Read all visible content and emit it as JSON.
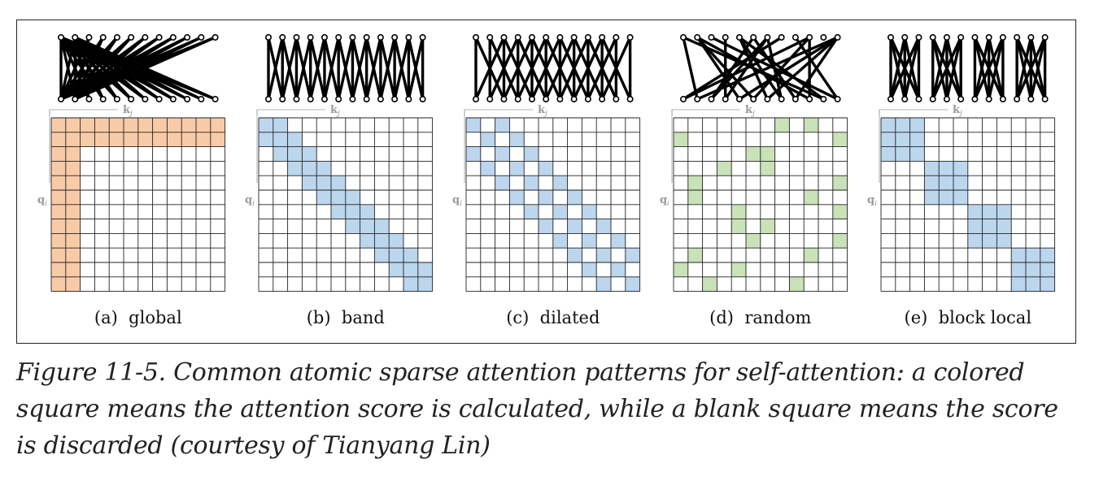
{
  "figure": {
    "key_label": "k",
    "key_subscript": "j",
    "query_label": "q",
    "query_subscript": "i",
    "colors": {
      "global": "#f8cba7",
      "band": "#bcd6ee",
      "dilated": "#bcd6ee",
      "random": "#c9e2b8",
      "block_local": "#bcd6ee",
      "grid_line": "#222222",
      "axis_label": "#9a9a9a"
    },
    "panels": [
      {
        "id": "global",
        "caption": "(a)  global",
        "color": "#f8cba7",
        "cells": [
          [
            0,
            0
          ],
          [
            0,
            1
          ],
          [
            0,
            2
          ],
          [
            0,
            3
          ],
          [
            0,
            4
          ],
          [
            0,
            5
          ],
          [
            0,
            6
          ],
          [
            0,
            7
          ],
          [
            0,
            8
          ],
          [
            0,
            9
          ],
          [
            0,
            10
          ],
          [
            0,
            11
          ],
          [
            1,
            0
          ],
          [
            1,
            1
          ],
          [
            1,
            2
          ],
          [
            1,
            3
          ],
          [
            1,
            4
          ],
          [
            1,
            5
          ],
          [
            1,
            6
          ],
          [
            1,
            7
          ],
          [
            1,
            8
          ],
          [
            1,
            9
          ],
          [
            1,
            10
          ],
          [
            1,
            11
          ],
          [
            2,
            0
          ],
          [
            3,
            0
          ],
          [
            4,
            0
          ],
          [
            5,
            0
          ],
          [
            6,
            0
          ],
          [
            7,
            0
          ],
          [
            8,
            0
          ],
          [
            9,
            0
          ],
          [
            10,
            0
          ],
          [
            11,
            0
          ],
          [
            2,
            1
          ],
          [
            3,
            1
          ],
          [
            4,
            1
          ],
          [
            5,
            1
          ],
          [
            6,
            1
          ],
          [
            7,
            1
          ],
          [
            8,
            1
          ],
          [
            9,
            1
          ],
          [
            10,
            1
          ],
          [
            11,
            1
          ]
        ],
        "connections": [
          [
            0,
            0
          ],
          [
            0,
            1
          ],
          [
            0,
            2
          ],
          [
            0,
            3
          ],
          [
            0,
            4
          ],
          [
            0,
            5
          ],
          [
            0,
            6
          ],
          [
            0,
            7
          ],
          [
            0,
            8
          ],
          [
            0,
            9
          ],
          [
            0,
            10
          ],
          [
            0,
            11
          ],
          [
            1,
            0
          ],
          [
            1,
            1
          ],
          [
            1,
            2
          ],
          [
            1,
            3
          ],
          [
            1,
            4
          ],
          [
            1,
            5
          ],
          [
            1,
            6
          ],
          [
            1,
            7
          ],
          [
            1,
            8
          ],
          [
            1,
            9
          ],
          [
            1,
            10
          ],
          [
            1,
            11
          ],
          [
            2,
            0
          ],
          [
            3,
            0
          ],
          [
            4,
            0
          ],
          [
            5,
            0
          ],
          [
            6,
            0
          ],
          [
            7,
            0
          ],
          [
            8,
            0
          ],
          [
            9,
            0
          ],
          [
            10,
            0
          ],
          [
            11,
            0
          ],
          [
            2,
            1
          ],
          [
            3,
            1
          ],
          [
            4,
            1
          ],
          [
            5,
            1
          ],
          [
            6,
            1
          ],
          [
            7,
            1
          ],
          [
            8,
            1
          ],
          [
            9,
            1
          ],
          [
            10,
            1
          ],
          [
            11,
            1
          ]
        ]
      },
      {
        "id": "band",
        "caption": "(b)  band",
        "color": "#bcd6ee",
        "cells": [
          [
            0,
            0
          ],
          [
            0,
            1
          ],
          [
            1,
            0
          ],
          [
            1,
            1
          ],
          [
            1,
            2
          ],
          [
            2,
            1
          ],
          [
            2,
            2
          ],
          [
            2,
            3
          ],
          [
            3,
            2
          ],
          [
            3,
            3
          ],
          [
            3,
            4
          ],
          [
            4,
            3
          ],
          [
            4,
            4
          ],
          [
            4,
            5
          ],
          [
            5,
            4
          ],
          [
            5,
            5
          ],
          [
            5,
            6
          ],
          [
            6,
            5
          ],
          [
            6,
            6
          ],
          [
            6,
            7
          ],
          [
            7,
            6
          ],
          [
            7,
            7
          ],
          [
            7,
            8
          ],
          [
            8,
            7
          ],
          [
            8,
            8
          ],
          [
            8,
            9
          ],
          [
            9,
            8
          ],
          [
            9,
            9
          ],
          [
            9,
            10
          ],
          [
            10,
            9
          ],
          [
            10,
            10
          ],
          [
            10,
            11
          ],
          [
            11,
            10
          ],
          [
            11,
            11
          ]
        ],
        "connections": [
          [
            0,
            0
          ],
          [
            0,
            1
          ],
          [
            1,
            0
          ],
          [
            1,
            1
          ],
          [
            1,
            2
          ],
          [
            2,
            1
          ],
          [
            2,
            2
          ],
          [
            2,
            3
          ],
          [
            3,
            2
          ],
          [
            3,
            3
          ],
          [
            3,
            4
          ],
          [
            4,
            3
          ],
          [
            4,
            4
          ],
          [
            4,
            5
          ],
          [
            5,
            4
          ],
          [
            5,
            5
          ],
          [
            5,
            6
          ],
          [
            6,
            5
          ],
          [
            6,
            6
          ],
          [
            6,
            7
          ],
          [
            7,
            6
          ],
          [
            7,
            7
          ],
          [
            7,
            8
          ],
          [
            8,
            7
          ],
          [
            8,
            8
          ],
          [
            8,
            9
          ],
          [
            9,
            8
          ],
          [
            9,
            9
          ],
          [
            9,
            10
          ],
          [
            10,
            9
          ],
          [
            10,
            10
          ],
          [
            10,
            11
          ],
          [
            11,
            10
          ],
          [
            11,
            11
          ]
        ]
      },
      {
        "id": "dilated",
        "caption": "(c)  dilated",
        "color": "#bcd6ee",
        "cells": [
          [
            0,
            0
          ],
          [
            0,
            2
          ],
          [
            1,
            1
          ],
          [
            1,
            3
          ],
          [
            2,
            0
          ],
          [
            2,
            2
          ],
          [
            2,
            4
          ],
          [
            3,
            1
          ],
          [
            3,
            3
          ],
          [
            3,
            5
          ],
          [
            4,
            2
          ],
          [
            4,
            4
          ],
          [
            4,
            6
          ],
          [
            5,
            3
          ],
          [
            5,
            5
          ],
          [
            5,
            7
          ],
          [
            6,
            4
          ],
          [
            6,
            6
          ],
          [
            6,
            8
          ],
          [
            7,
            5
          ],
          [
            7,
            7
          ],
          [
            7,
            9
          ],
          [
            8,
            6
          ],
          [
            8,
            8
          ],
          [
            8,
            10
          ],
          [
            9,
            7
          ],
          [
            9,
            9
          ],
          [
            9,
            11
          ],
          [
            10,
            8
          ],
          [
            10,
            10
          ],
          [
            11,
            9
          ],
          [
            11,
            11
          ]
        ],
        "connections": [
          [
            0,
            0
          ],
          [
            0,
            2
          ],
          [
            1,
            1
          ],
          [
            1,
            3
          ],
          [
            2,
            0
          ],
          [
            2,
            2
          ],
          [
            2,
            4
          ],
          [
            3,
            1
          ],
          [
            3,
            3
          ],
          [
            3,
            5
          ],
          [
            4,
            2
          ],
          [
            4,
            4
          ],
          [
            4,
            6
          ],
          [
            5,
            3
          ],
          [
            5,
            5
          ],
          [
            5,
            7
          ],
          [
            6,
            4
          ],
          [
            6,
            6
          ],
          [
            6,
            8
          ],
          [
            7,
            5
          ],
          [
            7,
            7
          ],
          [
            7,
            9
          ],
          [
            8,
            6
          ],
          [
            8,
            8
          ],
          [
            8,
            10
          ],
          [
            9,
            7
          ],
          [
            9,
            9
          ],
          [
            9,
            11
          ],
          [
            10,
            8
          ],
          [
            10,
            10
          ],
          [
            11,
            9
          ],
          [
            11,
            11
          ]
        ]
      },
      {
        "id": "random",
        "caption": "(d)  random",
        "color": "#c9e2b8",
        "cells": [
          [
            0,
            7
          ],
          [
            0,
            9
          ],
          [
            1,
            0
          ],
          [
            1,
            11
          ],
          [
            2,
            5
          ],
          [
            2,
            6
          ],
          [
            3,
            3
          ],
          [
            3,
            6
          ],
          [
            4,
            1
          ],
          [
            4,
            11
          ],
          [
            5,
            1
          ],
          [
            5,
            9
          ],
          [
            6,
            4
          ],
          [
            6,
            11
          ],
          [
            7,
            4
          ],
          [
            7,
            6
          ],
          [
            8,
            5
          ],
          [
            8,
            11
          ],
          [
            9,
            1
          ],
          [
            9,
            9
          ],
          [
            10,
            0
          ],
          [
            10,
            4
          ],
          [
            11,
            2
          ],
          [
            11,
            8
          ]
        ],
        "connections": [
          [
            0,
            7
          ],
          [
            0,
            9
          ],
          [
            1,
            0
          ],
          [
            1,
            11
          ],
          [
            2,
            5
          ],
          [
            2,
            6
          ],
          [
            3,
            3
          ],
          [
            3,
            6
          ],
          [
            4,
            1
          ],
          [
            4,
            11
          ],
          [
            5,
            1
          ],
          [
            5,
            9
          ],
          [
            6,
            4
          ],
          [
            6,
            11
          ],
          [
            7,
            4
          ],
          [
            7,
            6
          ],
          [
            8,
            5
          ],
          [
            8,
            11
          ],
          [
            9,
            1
          ],
          [
            9,
            9
          ],
          [
            10,
            0
          ],
          [
            10,
            4
          ],
          [
            11,
            2
          ],
          [
            11,
            8
          ]
        ]
      },
      {
        "id": "block-local",
        "caption": "(e)  block local",
        "color": "#bcd6ee",
        "cells": [
          [
            0,
            0
          ],
          [
            0,
            1
          ],
          [
            0,
            2
          ],
          [
            1,
            0
          ],
          [
            1,
            1
          ],
          [
            1,
            2
          ],
          [
            2,
            0
          ],
          [
            2,
            1
          ],
          [
            2,
            2
          ],
          [
            3,
            3
          ],
          [
            3,
            4
          ],
          [
            3,
            5
          ],
          [
            4,
            3
          ],
          [
            4,
            4
          ],
          [
            4,
            5
          ],
          [
            5,
            3
          ],
          [
            5,
            4
          ],
          [
            5,
            5
          ],
          [
            6,
            6
          ],
          [
            6,
            7
          ],
          [
            6,
            8
          ],
          [
            7,
            6
          ],
          [
            7,
            7
          ],
          [
            7,
            8
          ],
          [
            8,
            6
          ],
          [
            8,
            7
          ],
          [
            8,
            8
          ],
          [
            9,
            9
          ],
          [
            9,
            10
          ],
          [
            9,
            11
          ],
          [
            10,
            9
          ],
          [
            10,
            10
          ],
          [
            10,
            11
          ],
          [
            11,
            9
          ],
          [
            11,
            10
          ],
          [
            11,
            11
          ]
        ],
        "connections": [
          [
            0,
            0
          ],
          [
            0,
            1
          ],
          [
            0,
            2
          ],
          [
            1,
            0
          ],
          [
            1,
            1
          ],
          [
            1,
            2
          ],
          [
            2,
            0
          ],
          [
            2,
            1
          ],
          [
            2,
            2
          ],
          [
            3,
            3
          ],
          [
            3,
            4
          ],
          [
            3,
            5
          ],
          [
            4,
            3
          ],
          [
            4,
            4
          ],
          [
            4,
            5
          ],
          [
            5,
            3
          ],
          [
            5,
            4
          ],
          [
            5,
            5
          ],
          [
            6,
            6
          ],
          [
            6,
            7
          ],
          [
            6,
            8
          ],
          [
            7,
            6
          ],
          [
            7,
            7
          ],
          [
            7,
            8
          ],
          [
            8,
            6
          ],
          [
            8,
            7
          ],
          [
            8,
            8
          ],
          [
            9,
            9
          ],
          [
            9,
            10
          ],
          [
            9,
            11
          ],
          [
            10,
            9
          ],
          [
            10,
            10
          ],
          [
            10,
            11
          ],
          [
            11,
            9
          ],
          [
            11,
            10
          ],
          [
            11,
            11
          ]
        ]
      }
    ]
  },
  "caption": {
    "text": "Figure 11-5. Common atomic sparse attention patterns for self-attention: a colored square means the attention score is calculated, while a blank square means the score is discarded (courtesy of Tianyang Lin)"
  }
}
